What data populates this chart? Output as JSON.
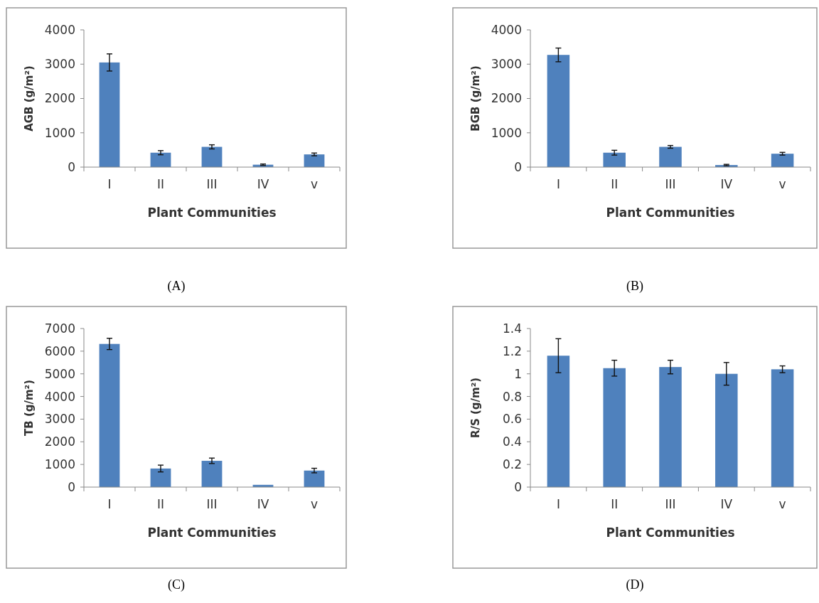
{
  "chart_data": [
    {
      "type": "bar",
      "xlabel": "Plant Communities",
      "ylabel": "AGB (g/m²)",
      "categories": [
        "I",
        "II",
        "III",
        "IV",
        "v"
      ],
      "values": [
        3050,
        420,
        590,
        70,
        370
      ],
      "errors": [
        250,
        60,
        60,
        20,
        40
      ],
      "color": "#4f81bd",
      "ylim": [
        0,
        4000
      ],
      "yticks": [
        0,
        1000,
        2000,
        3000,
        4000
      ],
      "grid": false,
      "annotations": [
        "(A)"
      ]
    },
    {
      "type": "bar",
      "xlabel": "Plant Communities",
      "ylabel": "BGB (g/m²)",
      "categories": [
        "I",
        "II",
        "III",
        "IV",
        "v"
      ],
      "values": [
        3270,
        420,
        590,
        60,
        390
      ],
      "errors": [
        200,
        70,
        40,
        20,
        40
      ],
      "color": "#4f81bd",
      "ylim": [
        0,
        4000
      ],
      "yticks": [
        0,
        1000,
        2000,
        3000,
        4000
      ],
      "grid": false,
      "annotations": [
        "(B)"
      ]
    },
    {
      "type": "bar",
      "xlabel": "Plant Communities",
      "ylabel": "TB (g/m²)",
      "categories": [
        "I",
        "II",
        "III",
        "IV",
        "v"
      ],
      "values": [
        6320,
        820,
        1160,
        100,
        730
      ],
      "errors": [
        250,
        150,
        120,
        null,
        100
      ],
      "color": "#4f81bd",
      "ylim": [
        0,
        7000
      ],
      "yticks": [
        0,
        1000,
        2000,
        3000,
        4000,
        5000,
        6000,
        7000
      ],
      "grid": false,
      "annotations": [
        "(C)"
      ]
    },
    {
      "type": "bar",
      "xlabel": "Plant Communities",
      "ylabel": "R/S (g/m²)",
      "categories": [
        "I",
        "II",
        "III",
        "IV",
        "v"
      ],
      "values": [
        1.16,
        1.05,
        1.06,
        1.0,
        1.04
      ],
      "errors": [
        0.15,
        0.07,
        0.06,
        0.1,
        0.03
      ],
      "color": "#4f81bd",
      "ylim": [
        0,
        1.4
      ],
      "yticks": [
        0,
        0.2,
        0.4,
        0.6,
        0.8,
        1,
        1.2,
        1.4
      ],
      "grid": false,
      "annotations": [
        "(D)"
      ]
    }
  ]
}
